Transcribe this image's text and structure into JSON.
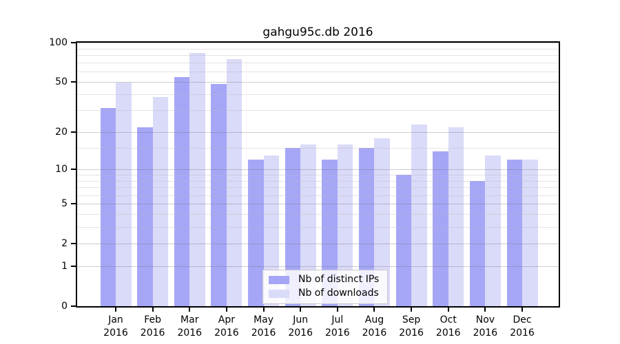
{
  "title": "gahgu95c.db 2016",
  "legend": {
    "items": [
      {
        "label": "Nb of distinct IPs",
        "color": "#a6a6f7"
      },
      {
        "label": "Nb of downloads",
        "color": "#dadaf9"
      }
    ]
  },
  "chart_data": {
    "type": "bar",
    "title": "gahgu95c.db 2016",
    "categories": [
      "Jan",
      "Feb",
      "Mar",
      "Apr",
      "May",
      "Jun",
      "Jul",
      "Aug",
      "Sep",
      "Oct",
      "Nov",
      "Dec"
    ],
    "category_year": "2016",
    "series": [
      {
        "name": "Nb of distinct IPs",
        "color": "#a6a6f7",
        "values": [
          31,
          22,
          54,
          48,
          12,
          15,
          12,
          15,
          9,
          14,
          8,
          12
        ]
      },
      {
        "name": "Nb of downloads",
        "color": "#dadaf9",
        "values": [
          49,
          38,
          83,
          75,
          13,
          16,
          16,
          18,
          23,
          22,
          13,
          12
        ]
      }
    ],
    "xlabel": "",
    "ylabel": "",
    "scale": "log1p",
    "ylim": [
      0,
      100
    ],
    "y_major_ticks": [
      0,
      1,
      2,
      5,
      10,
      20,
      50,
      100
    ],
    "y_tick_labels": [
      "0",
      "1",
      "2",
      "5",
      "10",
      "20",
      "50",
      "100"
    ],
    "y_minor_gridlines": [
      3,
      4,
      6,
      7,
      8,
      9,
      15,
      30,
      40,
      60,
      70,
      80,
      90
    ],
    "grid": "on",
    "legend_position": "bottom-center"
  }
}
